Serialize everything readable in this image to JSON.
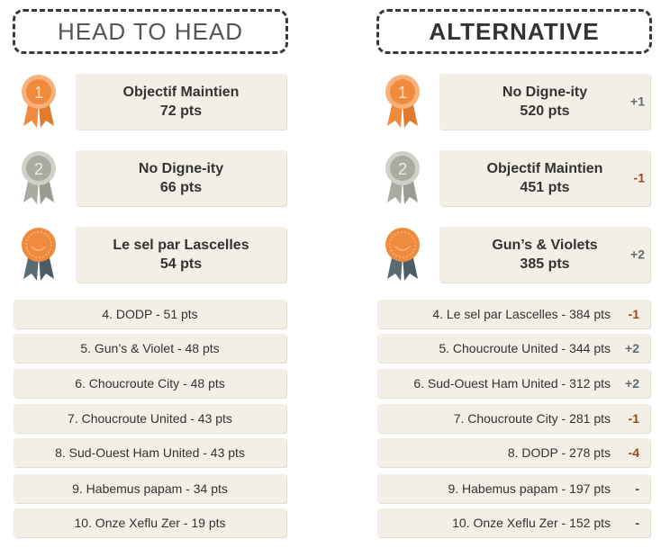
{
  "headers": {
    "left": "HEAD TO HEAD",
    "right": "ALTERNATIVE"
  },
  "colors": {
    "gold": "#f08a3c",
    "silver": "#a9aaa0",
    "bronze_face": "#f08a3c",
    "bronze_ribbon": "#5b6b73",
    "card_bg": "#f3efe6",
    "up": "#5f6b72",
    "down": "#a0481f"
  },
  "head_to_head": {
    "podium": [
      {
        "rank": "1",
        "medal_icon": "gold-medal-icon",
        "name": "Objectif Maintien",
        "pts": "72 pts"
      },
      {
        "rank": "2",
        "medal_icon": "silver-medal-icon",
        "name": "No Digne-ity",
        "pts": "66 pts"
      },
      {
        "rank": "",
        "medal_icon": "bronze-smiley-medal-icon",
        "name": "Le sel par Lascelles",
        "pts": "54 pts"
      }
    ],
    "rows": [
      "4. DODP - 51 pts",
      "5. Gun’s & Violet - 48 pts",
      "6. Choucroute City - 48 pts",
      "7. Choucroute United - 43 pts",
      "8. Sud-Ouest Ham United - 43 pts",
      "9. Habemus papam - 34 pts",
      "10. Onze Xeflu Zer - 19 pts"
    ]
  },
  "alternative": {
    "podium": [
      {
        "rank": "1",
        "medal_icon": "gold-medal-icon",
        "name": "No Digne-ity",
        "pts": "520 pts",
        "change": "+1",
        "trend": "up"
      },
      {
        "rank": "2",
        "medal_icon": "silver-medal-icon",
        "name": "Objectif Maintien",
        "pts": "451 pts",
        "change": "-1",
        "trend": "down"
      },
      {
        "rank": "",
        "medal_icon": "bronze-smiley-medal-icon",
        "name": "Gun’s & Violets",
        "pts": "385 pts",
        "change": "+2",
        "trend": "up"
      }
    ],
    "rows": [
      {
        "text": "4. Le sel par Lascelles - 384 pts",
        "change": "-1",
        "trend": "down"
      },
      {
        "text": "5. Choucroute United - 344 pts",
        "change": "+2",
        "trend": "up"
      },
      {
        "text": "6. Sud-Ouest Ham United - 312 pts",
        "change": "+2",
        "trend": "up"
      },
      {
        "text": "7. Choucroute City - 281 pts",
        "change": "-1",
        "trend": "down"
      },
      {
        "text": "8. DODP - 278 pts",
        "change": "-4",
        "trend": "down"
      },
      {
        "text": "9. Habemus papam - 197 pts",
        "change": "-",
        "trend": "same"
      },
      {
        "text": "10. Onze Xeflu Zer - 152 pts",
        "change": "-",
        "trend": "same"
      }
    ]
  }
}
